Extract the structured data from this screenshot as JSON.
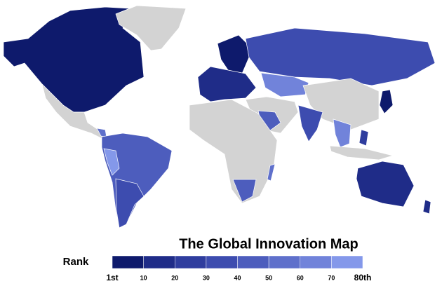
{
  "title": "The Global Innovation Map",
  "legend": {
    "title": "Rank",
    "colors": [
      "#0e1a6c",
      "#1f2c88",
      "#2f3d9e",
      "#3d4caf",
      "#4d5dbd",
      "#5f70cb",
      "#7183da",
      "#8498ea"
    ],
    "labels": [
      "1st",
      "10",
      "20",
      "30",
      "40",
      "50",
      "60",
      "70",
      "80th"
    ]
  }
}
